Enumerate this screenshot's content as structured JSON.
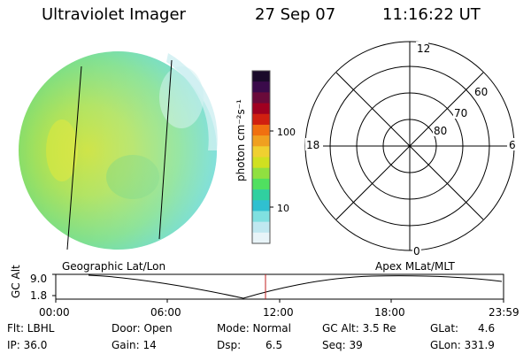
{
  "header": {
    "instrument": "Ultraviolet Imager",
    "date": "27 Sep 07",
    "time": "11:16:22 UT"
  },
  "colorbar": {
    "label": "photon cm⁻²s⁻¹",
    "ticks": [
      "100",
      "10"
    ],
    "scale": "log",
    "colors": [
      "#1a0a2a",
      "#3a0a4a",
      "#6a0a3a",
      "#a00020",
      "#d02010",
      "#f07010",
      "#f0a020",
      "#f0d030",
      "#d0e020",
      "#90e040",
      "#50e060",
      "#30d0a0",
      "#30c0d0",
      "#80e0e0",
      "#c0e8f0",
      "#e8f4f8"
    ]
  },
  "polar": {
    "mlt_labels": [
      "12",
      "18",
      "6",
      "0"
    ],
    "lat_labels": [
      "60",
      "70",
      "80"
    ]
  },
  "map": {
    "left_label": "Geographic Lat/Lon",
    "right_label": "Apex MLat/MLT"
  },
  "orbit_plot": {
    "ylabel": "GC Alt",
    "yticks": [
      "9.0",
      "1.8"
    ],
    "xticks": [
      "00:00",
      "06:00",
      "12:00",
      "18:00",
      "23:59"
    ]
  },
  "footer": {
    "row1": {
      "filter": "Flt: LBHL",
      "door": "Door: Open",
      "mode": "Mode: Normal",
      "gcalt": "GC Alt: 3.5 Re",
      "glat_label": "GLat:",
      "glat_value": "4.6"
    },
    "row2": {
      "ip": "IP: 36.0",
      "gain": "Gain: 14",
      "dsp_label": "Dsp:",
      "dsp_value": "6.5",
      "seq": "Seq: 39",
      "glon": "GLon: 331.9"
    }
  }
}
